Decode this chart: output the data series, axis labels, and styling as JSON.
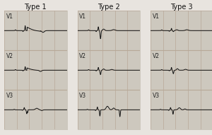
{
  "title1": "Type 1",
  "title2": "Type 2",
  "title3": "Type 3",
  "fig_bg": "#e8e4df",
  "panel_bg": "#cdc8be",
  "grid_major": "#b8a898",
  "grid_minor": "#d4cdc4",
  "line_color": "#111111",
  "label_color": "#222222",
  "title_fontsize": 7,
  "lead_fontsize": 5.5,
  "border_color": "#888888"
}
